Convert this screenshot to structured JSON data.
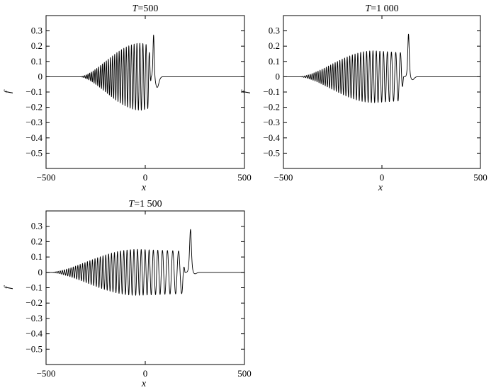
{
  "chart_data": [
    {
      "type": "line",
      "title": "T=500",
      "title_var": "T",
      "title_value": "=500",
      "xlabel": "x",
      "ylabel": "f",
      "xlim": [
        -500,
        500
      ],
      "ylim": [
        -0.6,
        0.4
      ],
      "xticks": [
        -500,
        0,
        500
      ],
      "xtick_labels": [
        "−500",
        "0",
        "500"
      ],
      "yticks": [
        0.3,
        0.2,
        0.1,
        0,
        -0.1,
        -0.2,
        -0.3,
        -0.4,
        -0.5
      ],
      "ytick_labels": [
        "0.3",
        "0.2",
        "0.1",
        "0",
        "−0.1",
        "−0.2",
        "−0.3",
        "−0.4",
        "−0.5"
      ],
      "grid": false,
      "legend": "none",
      "wave": {
        "start": -330,
        "end": 30,
        "peak_x": -20,
        "amplitude": 0.22,
        "wavelength_start": 8,
        "wavelength_end": 18,
        "soliton_x": 42,
        "soliton_height": 0.28,
        "soliton_width": 4,
        "dip_x": 60,
        "dip_depth": -0.07
      }
    },
    {
      "type": "line",
      "title": "T=1 000",
      "title_var": "T",
      "title_value": "=1 000",
      "xlabel": "x",
      "ylabel": "f",
      "xlim": [
        -500,
        500
      ],
      "ylim": [
        -0.6,
        0.4
      ],
      "xticks": [
        -500,
        0,
        500
      ],
      "xtick_labels": [
        "−500",
        "0",
        "500"
      ],
      "yticks": [
        0.3,
        0.2,
        0.1,
        0,
        -0.1,
        -0.2,
        -0.3,
        -0.4,
        -0.5
      ],
      "ytick_labels": [
        "0.3",
        "0.2",
        "0.1",
        "0",
        "−0.1",
        "−0.2",
        "−0.3",
        "−0.4",
        "−0.5"
      ],
      "grid": false,
      "legend": "none",
      "wave": {
        "start": -420,
        "end": 110,
        "peak_x": -40,
        "amplitude": 0.17,
        "wavelength_start": 9,
        "wavelength_end": 26,
        "soliton_x": 135,
        "soliton_height": 0.28,
        "soliton_width": 5,
        "dip_x": 155,
        "dip_depth": -0.02
      }
    },
    {
      "type": "line",
      "title": "T=1 500",
      "title_var": "T",
      "title_value": "=1 500",
      "xlabel": "x",
      "ylabel": "f",
      "xlim": [
        -500,
        500
      ],
      "ylim": [
        -0.6,
        0.4
      ],
      "xticks": [
        -500,
        0,
        500
      ],
      "xtick_labels": [
        "−500",
        "0",
        "500"
      ],
      "yticks": [
        0.3,
        0.2,
        0.1,
        0,
        -0.1,
        -0.2,
        -0.3,
        -0.4,
        -0.5
      ],
      "ytick_labels": [
        "0.3",
        "0.2",
        "0.1",
        "0",
        "−0.1",
        "−0.2",
        "−0.3",
        "−0.4",
        "−0.5"
      ],
      "grid": false,
      "legend": "none",
      "wave": {
        "start": -480,
        "end": 200,
        "peak_x": -40,
        "amplitude": 0.15,
        "wavelength_start": 10,
        "wavelength_end": 34,
        "soliton_x": 228,
        "soliton_height": 0.28,
        "soliton_width": 6,
        "dip_x": 250,
        "dip_depth": -0.01
      }
    }
  ]
}
